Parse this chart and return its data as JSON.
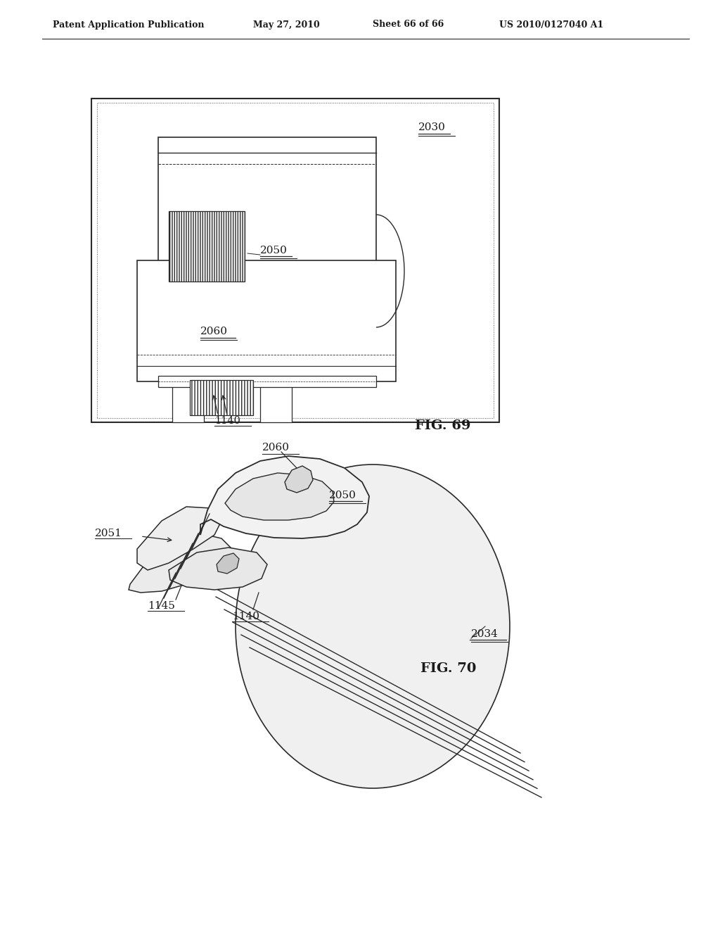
{
  "background_color": "#ffffff",
  "header_text": "Patent Application Publication",
  "header_date": "May 27, 2010",
  "header_sheet": "Sheet 66 of 66",
  "header_patent": "US 2010/0127040 A1",
  "fig69_label": "FIG. 69",
  "fig70_label": "FIG. 70",
  "text_color": "#1a1a1a",
  "line_color": "#2a2a2a"
}
